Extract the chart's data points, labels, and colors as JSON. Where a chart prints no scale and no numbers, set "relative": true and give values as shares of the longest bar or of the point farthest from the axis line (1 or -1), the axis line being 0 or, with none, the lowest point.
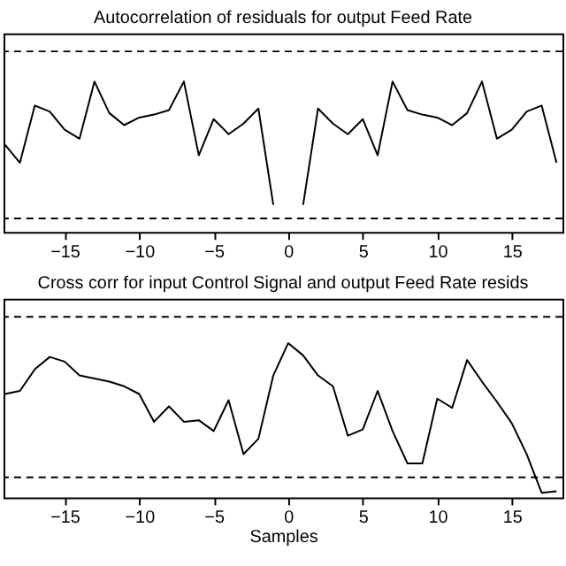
{
  "chart_data": [
    {
      "type": "line",
      "title": "Autocorrelation of residuals for output Feed Rate",
      "relative": true,
      "tick_labels": "x",
      "grid": false,
      "legend": false,
      "marker": "none",
      "line_style": "solid",
      "x": [
        -19,
        -18,
        -17,
        -16,
        -15,
        -14,
        -13,
        -12,
        -11,
        -10,
        -9,
        -8,
        -7,
        -6,
        -5,
        -4,
        -3,
        -2,
        -1,
        0,
        1,
        2,
        3,
        4,
        5,
        6,
        7,
        8,
        9,
        10,
        11,
        12,
        13,
        14,
        15,
        16,
        17,
        18
      ],
      "xlim": [
        -19.1,
        18.4
      ],
      "xticks": [
        -15,
        -10,
        -5,
        0,
        5,
        10,
        15
      ],
      "series": [
        {
          "color": "#000000",
          "values": [
            0.58,
            0.46,
            0.84,
            0.8,
            0.68,
            0.62,
            1.0,
            0.79,
            0.71,
            0.76,
            0.78,
            0.81,
            1.0,
            0.51,
            0.75,
            0.65,
            0.72,
            0.82,
            0.18,
            null,
            0.18,
            0.82,
            0.72,
            0.65,
            0.75,
            0.51,
            1.0,
            0.81,
            0.78,
            0.76,
            0.71,
            0.79,
            1.0,
            0.62,
            0.68,
            0.8,
            0.84,
            0.46
          ]
        }
      ],
      "ref_lines": [
        {
          "axis": "y",
          "value": 1.2,
          "color": "#000000",
          "line_style": "dashed"
        },
        {
          "axis": "y",
          "value": 0.09,
          "color": "#000000",
          "line_style": "dashed"
        }
      ]
    },
    {
      "type": "line",
      "title": "Cross corr for input Control Signal and output Feed Rate resids",
      "xlabel": "Samples",
      "relative": true,
      "tick_labels": "x",
      "grid": false,
      "legend": false,
      "marker": "none",
      "line_style": "solid",
      "x": [
        -19,
        -18,
        -17,
        -16,
        -15,
        -14,
        -13,
        -12,
        -11,
        -10,
        -9,
        -8,
        -7,
        -6,
        -5,
        -4,
        -3,
        -2,
        -1,
        0,
        1,
        2,
        3,
        4,
        5,
        6,
        7,
        8,
        9,
        10,
        11,
        12,
        13,
        14,
        15,
        16,
        17,
        18
      ],
      "xlim": [
        -19.1,
        18.4
      ],
      "xticks": [
        -15,
        -10,
        -5,
        0,
        5,
        10,
        15
      ],
      "series": [
        {
          "color": "#000000",
          "values": [
            0.67,
            0.69,
            0.83,
            0.91,
            0.88,
            0.79,
            0.77,
            0.75,
            0.72,
            0.67,
            0.49,
            0.59,
            0.49,
            0.5,
            0.43,
            0.63,
            0.28,
            0.38,
            0.79,
            1.0,
            0.92,
            0.79,
            0.72,
            0.4,
            0.44,
            0.69,
            0.43,
            0.22,
            0.22,
            0.64,
            0.58,
            0.89,
            0.75,
            0.62,
            0.48,
            0.28,
            0.03,
            0.04
          ]
        }
      ],
      "ref_lines": [
        {
          "axis": "y",
          "value": 1.17,
          "color": "#000000",
          "line_style": "dashed"
        },
        {
          "axis": "y",
          "value": 0.13,
          "color": "#000000",
          "line_style": "dashed"
        }
      ]
    }
  ]
}
